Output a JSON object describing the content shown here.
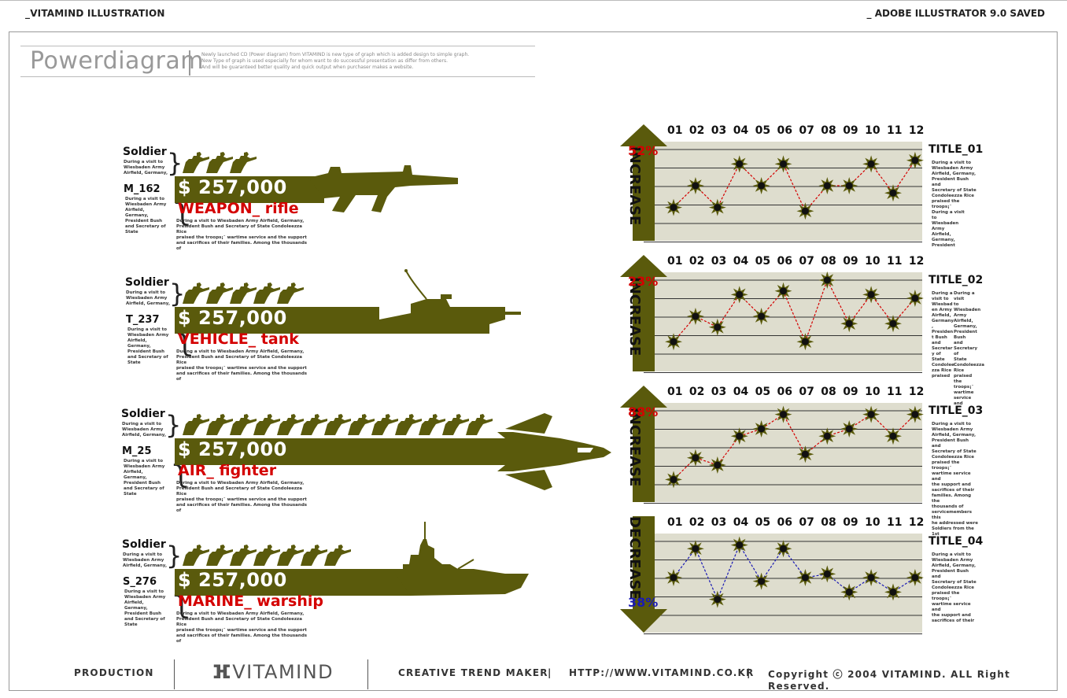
{
  "header": {
    "left": "_VITAMIND ILLUSTRATION",
    "right": "_ ADOBE ILLUSTRATOR 9.0 SAVED"
  },
  "intro": {
    "title": "Powerdiagram",
    "desc_lines": [
      "Newly launched CD (Power diagram) from VITAMIND is new type of graph which is added design to simple graph.",
      "New Type of graph is used especially for whom want to do successful presentation as differ from others.",
      "And will be guaranteed better quality and quick output when purchaser makes a website."
    ]
  },
  "rows": [
    {
      "soldier_label": "Soldier",
      "soldier_note": [
        "During a visit to",
        "Wiesbaden Army",
        "Airfield, Germany,"
      ],
      "code": "M_162",
      "code_note": [
        "During a visit to",
        "Wiesbaden Army",
        "Airfield,",
        "Germany,",
        "President Bush",
        "and Secretary of",
        "State"
      ],
      "price": "$ 257,000",
      "category": "WEAPON_ rifle",
      "desc": [
        "During a visit to Wiesbaden Army Airfield, Germany,",
        "President Bush and Secretary of State Condoleezza Rice",
        "praised the troops¡¯ wartime service and the support",
        "and sacrifices of their families. Among the thousands of"
      ],
      "soldier_count": 3,
      "icon": "rifle-icon"
    },
    {
      "soldier_label": "Soldier",
      "soldier_note": [
        "During a visit to",
        "Wiesbaden Army",
        "Airfield, Germany,"
      ],
      "code": "T_237",
      "code_note": [
        "During a visit to",
        "Wiesbaden Army",
        "Airfield,",
        "Germany,",
        "President Bush",
        "and Secretary of",
        "State"
      ],
      "price": "$ 257,000",
      "category": "VEHICLE_ tank",
      "desc": [
        "During a visit to Wiesbaden Army Airfield, Germany,",
        "President Bush and Secretary of State Condoleezza Rice",
        "praised the troops¡¯ wartime service and the support",
        "and sacrifices of their families. Among the thousands of"
      ],
      "soldier_count": 5,
      "icon": "tank-icon"
    },
    {
      "soldier_label": "Soldier",
      "soldier_note": [
        "During a visit to",
        "Wiesbaden Army",
        "Airfield, Germany,"
      ],
      "code": "M_25",
      "code_note": [
        "During a visit to",
        "Wiesbaden Army",
        "Airfield,",
        "Germany,",
        "President Bush",
        "and Secretary of",
        "State"
      ],
      "price": "$ 257,000",
      "category": "AIR_ fighter",
      "desc": [
        "During a visit to Wiesbaden Army Airfield, Germany,",
        "President Bush and Secretary of State Condoleezza Rice",
        "praised the troops¡¯ wartime service and the support",
        "and sacrifices of their families. Among the thousands of"
      ],
      "soldier_count": 13,
      "icon": "fighter-jet-icon"
    },
    {
      "soldier_label": "Soldier",
      "soldier_note": [
        "During a visit to",
        "Wiesbaden Army",
        "Airfield, Germany,"
      ],
      "code": "S_276",
      "code_note": [
        "During a visit to",
        "Wiesbaden Army",
        "Airfield,",
        "Germany,",
        "President Bush",
        "and Secretary of",
        "State"
      ],
      "price": "$ 257,000",
      "category": "MARINE_ warship",
      "desc": [
        "During a visit to Wiesbaden Army Airfield, Germany,",
        "President Bush and Secretary of State Condoleezza Rice",
        "praised the troops¡¯ wartime service and the support",
        "and sacrifices of their families. Among the thousands of"
      ],
      "soldier_count": 7,
      "icon": "warship-icon"
    }
  ],
  "colors": {
    "olive": "#5a5a0c",
    "red": "#d40000",
    "blue": "#1a1ab4",
    "panel": "#deddce"
  },
  "chart_data": [
    {
      "type": "line",
      "categories": [
        "01",
        "02",
        "03",
        "04",
        "05",
        "06",
        "07",
        "08",
        "09",
        "10",
        "11",
        "12"
      ],
      "values": [
        2,
        5,
        2,
        8,
        5,
        8,
        1.5,
        5,
        5,
        8,
        4,
        8.5
      ],
      "ylim": [
        0,
        10
      ],
      "direction": "INCREASE",
      "percent": "52%",
      "title": "TITLE_01",
      "text_cols": [
        [
          "During a visit to",
          "Wiesbaden Army",
          "Airfield, Germany,",
          "President Bush and",
          "Secretary of State",
          "Condoleezza Rice",
          "praised the troops¡¯",
          "",
          "During a visit",
          "to",
          "Wiesbaden",
          "Army",
          "Airfield,",
          "Germany,",
          "President"
        ]
      ],
      "line_color": "#d40000"
    },
    {
      "type": "line",
      "categories": [
        "01",
        "02",
        "03",
        "04",
        "05",
        "06",
        "07",
        "08",
        "09",
        "10",
        "11",
        "12"
      ],
      "values": [
        1.5,
        5,
        3.5,
        8,
        5,
        8.5,
        1.5,
        10,
        4,
        8,
        4,
        7.5
      ],
      "ylim": [
        0,
        10
      ],
      "direction": "INCREASE",
      "percent": "23%",
      "title": "TITLE_02",
      "text_cols": [
        [
          "During a",
          "visit to",
          "Wiesbad",
          "en Army",
          "Airfield,",
          "Germany",
          ",",
          "Presiden",
          "t Bush",
          "and",
          "Secretar",
          "y of State",
          "Condolee",
          "zza Rice",
          "praised"
        ],
        [
          "During a visit",
          "to",
          "Wiesbaden",
          "Army",
          "Airfield,",
          "Germany,",
          "President",
          "Bush and",
          "Secretary of",
          "State",
          "Condoleezza",
          "Rice praised",
          "the troops¡¯",
          "wartime",
          "service and"
        ]
      ],
      "line_color": "#d40000"
    },
    {
      "type": "line",
      "categories": [
        "01",
        "02",
        "03",
        "04",
        "05",
        "06",
        "07",
        "08",
        "09",
        "10",
        "11",
        "12"
      ],
      "values": [
        0.5,
        3.5,
        2.5,
        6.5,
        7.5,
        9.5,
        4,
        6.5,
        7.5,
        9.5,
        6.5,
        9.5
      ],
      "ylim": [
        0,
        10
      ],
      "direction": "INCREASE",
      "percent": "88%",
      "title": "TITLE_03",
      "text_cols": [
        [
          "During a visit to",
          "Wiesbaden Army",
          "Airfield, Germany,",
          "President Bush and",
          "Secretary of State",
          "Condoleezza Rice",
          "praised the troops¡¯",
          "wartime service and",
          "the support and",
          "sacrifices of their",
          "families. Among the",
          "thousands of",
          "servicemembers this",
          "he addressed were",
          "Soldiers from the 1st"
        ]
      ],
      "line_color": "#d40000"
    },
    {
      "type": "line",
      "categories": [
        "01",
        "02",
        "03",
        "04",
        "05",
        "06",
        "07",
        "08",
        "09",
        "10",
        "11",
        "12"
      ],
      "values": [
        5,
        9,
        2,
        9.5,
        4.5,
        9,
        5,
        5.5,
        3,
        5,
        3,
        5
      ],
      "ylim": [
        0,
        10
      ],
      "direction": "DECREASE",
      "percent": "38%",
      "title": "TITLE_04",
      "text_cols": [
        [
          "During a visit to",
          "Wiesbaden Army",
          "Airfield, Germany,",
          "President Bush and",
          "Secretary of State",
          "Condoleezza Rice",
          "praised the troops¡¯",
          "wartime service and",
          "the support and",
          "sacrifices of their"
        ]
      ],
      "line_color": "#1a1ab4"
    }
  ],
  "footer": {
    "production": "PRODUCTION",
    "logo": "VITAMIND",
    "slogan": "CREATIVE TREND MAKER",
    "sep1": "|",
    "url": "HTTP://WWW.VITAMIND.CO.KR",
    "sep2": "|",
    "copyright": "Copyright ⓒ 2004 VITAMIND. ALL Right Reserved."
  }
}
